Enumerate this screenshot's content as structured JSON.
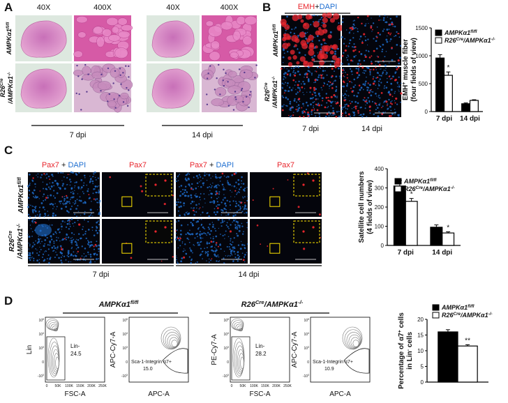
{
  "genotypes": {
    "wt": [
      "AMPKα1",
      "fl/fl"
    ],
    "ko": [
      "R26",
      "Cre",
      "/AMPKα1",
      "-/-"
    ]
  },
  "panels": {
    "A": {
      "label": "A",
      "magnifications": [
        "40X",
        "400X",
        "40X",
        "400X"
      ],
      "timepoints": [
        "7 dpi",
        "14 dpi"
      ]
    },
    "B": {
      "label": "B",
      "stain": [
        "EMH",
        "+",
        "DAPI"
      ],
      "timepoints": [
        "7 dpi",
        "14 dpi"
      ],
      "chart": {
        "type": "bar",
        "ylabel": {
          "line1": [
            "EMH",
            "+",
            " muscle fiber"
          ],
          "line2": [
            "(four fields of view)"
          ]
        },
        "categories": [
          "7 dpi",
          "14 dpi"
        ],
        "ylim": [
          0,
          1500
        ],
        "yticks": [
          0,
          500,
          1000,
          1500
        ],
        "series": [
          {
            "color": "#000000",
            "values": [
              960,
              140
            ],
            "errors": [
              60,
              15
            ]
          },
          {
            "color": "#ffffff",
            "values": [
              650,
              200
            ],
            "errors": [
              60,
              12
            ],
            "significance": {
              "7 dpi": "*"
            }
          }
        ]
      }
    },
    "C": {
      "label": "C",
      "headers": {
        "merge": [
          "Pax7",
          " + ",
          "DAPI"
        ],
        "single": "Pax7"
      },
      "timepoints": [
        "7 dpi",
        "14 dpi"
      ],
      "chart": {
        "type": "bar",
        "ylabel": {
          "line1": [
            "Satellite cell numbers"
          ],
          "line2": [
            "(4 fields of view)"
          ]
        },
        "categories": [
          "7 dpi",
          "14 dpi"
        ],
        "ylim": [
          0,
          400
        ],
        "yticks": [
          0,
          100,
          200,
          300,
          400
        ],
        "series": [
          {
            "color": "#000000",
            "values": [
              310,
              95
            ],
            "errors": [
              30,
              12
            ]
          },
          {
            "color": "#ffffff",
            "values": [
              230,
              65
            ],
            "errors": [
              15,
              6
            ],
            "significance": {
              "7 dpi": "*",
              "14 dpi": "*"
            }
          }
        ]
      }
    },
    "D": {
      "label": "D",
      "flow": {
        "x1label": "FSC-A",
        "x2label": "APC-A",
        "y2label": "APC-Cy7-A",
        "fsc_ticks": [
          "0",
          "50K",
          "100K",
          "150K",
          "200K",
          "250K"
        ],
        "log_ticks": [
          [
            "10",
            "5"
          ],
          [
            "10",
            "4"
          ],
          [
            "10",
            "3"
          ],
          [
            "0"
          ],
          [
            "-10",
            "3"
          ]
        ],
        "groups": [
          {
            "lin_ylabel": "Lin",
            "lin_gate": "Lin-",
            "lin_pct": "24.5",
            "a7_gate": "Sca-1-Integrin α7+",
            "a7_pct": "15.0"
          },
          {
            "lin_ylabel": "PE-Cy7-A",
            "lin_gate": "Lin-",
            "lin_pct": "28.2",
            "a7_gate": "Sca-1-Integrin α7+",
            "a7_pct": "10.9"
          }
        ]
      },
      "chart": {
        "type": "bar",
        "ylabel": {
          "line1": [
            "Percentage of α7",
            "+",
            " cells"
          ],
          "line2": [
            "in Lin",
            "-",
            " cells"
          ]
        },
        "ylim": [
          0,
          20
        ],
        "yticks": [
          0,
          5,
          10,
          15,
          20
        ],
        "series": [
          {
            "color": "#000000",
            "values": [
              16
            ],
            "errors": [
              0.7
            ]
          },
          {
            "color": "#ffffff",
            "values": [
              11.5
            ],
            "errors": [
              0.4
            ],
            "significance": "**"
          }
        ]
      }
    }
  }
}
